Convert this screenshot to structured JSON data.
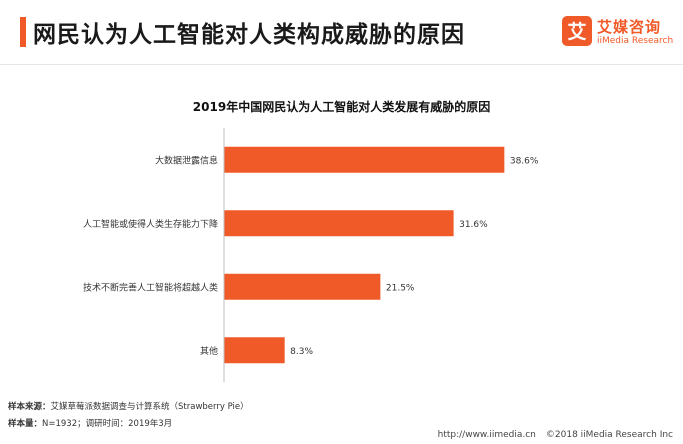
{
  "header": {
    "title": "网民认为人工智能对人类构成威胁的原因",
    "logo_cn": "艾媒咨询",
    "logo_en": "iiMedia Research",
    "logo_glyph": "艾"
  },
  "chart_data": {
    "type": "bar",
    "orientation": "horizontal",
    "title": "2019年中国网民认为人工智能对人类发展有威胁的原因",
    "categories": [
      "大数据泄露信息",
      "人工智能或使得人类生存能力下降",
      "技术不断完善人工智能将超越人类",
      "其他"
    ],
    "values": [
      38.6,
      31.6,
      21.5,
      8.3
    ],
    "value_labels": [
      "38.6%",
      "31.6%",
      "21.5%",
      "8.3%"
    ],
    "unit": "%",
    "xlim": [
      0,
      40
    ],
    "bar_color": "#f05a28",
    "grid": false
  },
  "footer": {
    "source_label": "样本来源：",
    "source_value": "艾媒草莓派数据调查与计算系统（Strawberry Pie）",
    "sample_label": "样本量：",
    "sample_value": "N=1932；调研时间：2019年3月",
    "url": "http://www.iimedia.cn",
    "copyright": "©2018  iiMedia Research  Inc"
  }
}
